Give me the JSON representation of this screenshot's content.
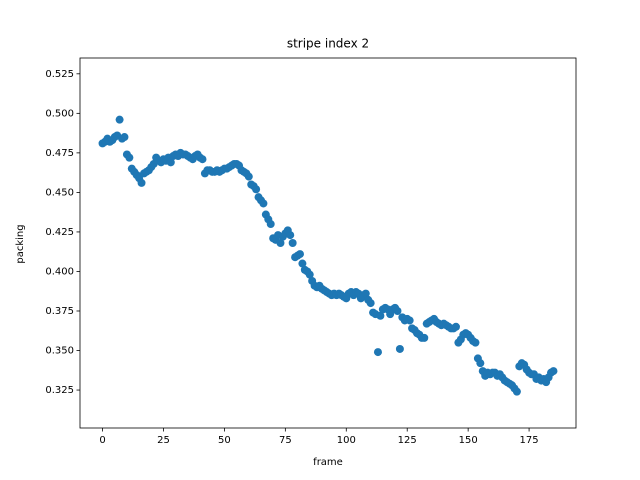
{
  "chart_data": {
    "type": "scatter",
    "title": "stripe index 2",
    "xlabel": "frame",
    "ylabel": "packing",
    "color": "#1f77b4",
    "grid": false,
    "xlim": [
      -9.25,
      194.25
    ],
    "xticks": [
      0,
      25,
      50,
      75,
      100,
      125,
      150,
      175
    ],
    "ylim": [
      0.301,
      0.535
    ],
    "yticks": [
      0.325,
      {
        "value": 0.35,
        "label": "0.350"
      },
      0.375,
      {
        "value": 0.4,
        "label": "0.400"
      },
      0.425,
      {
        "value": 0.45,
        "label": "0.450"
      },
      0.475,
      {
        "value": 0.5,
        "label": "0.500"
      },
      0.525
    ],
    "x": [
      0,
      1,
      2,
      3,
      4,
      5,
      6,
      7,
      8,
      9,
      10,
      11,
      12,
      13,
      14,
      15,
      16,
      17,
      18,
      19,
      20,
      21,
      22,
      23,
      24,
      25,
      26,
      27,
      28,
      29,
      30,
      31,
      32,
      33,
      34,
      35,
      36,
      37,
      38,
      39,
      40,
      41,
      42,
      43,
      44,
      45,
      46,
      47,
      48,
      49,
      50,
      51,
      52,
      53,
      54,
      55,
      56,
      57,
      58,
      59,
      60,
      61,
      62,
      63,
      64,
      65,
      66,
      67,
      68,
      69,
      70,
      71,
      72,
      73,
      74,
      75,
      76,
      77,
      78,
      79,
      80,
      81,
      82,
      83,
      84,
      85,
      86,
      87,
      88,
      89,
      90,
      91,
      92,
      93,
      94,
      95,
      96,
      97,
      98,
      99,
      100,
      101,
      102,
      103,
      104,
      105,
      106,
      107,
      108,
      109,
      110,
      111,
      112,
      113,
      114,
      115,
      116,
      117,
      118,
      119,
      120,
      121,
      122,
      123,
      124,
      125,
      126,
      127,
      128,
      129,
      130,
      131,
      132,
      133,
      134,
      135,
      136,
      137,
      138,
      139,
      140,
      141,
      142,
      143,
      144,
      145,
      146,
      147,
      148,
      149,
      150,
      151,
      152,
      153,
      154,
      155,
      156,
      157,
      158,
      159,
      160,
      161,
      162,
      163,
      164,
      165,
      166,
      167,
      168,
      169,
      170,
      171,
      172,
      173,
      174,
      175,
      176,
      177,
      178,
      179,
      180,
      181,
      182,
      183,
      184,
      185
    ],
    "values": [
      0.481,
      0.482,
      0.484,
      0.482,
      0.483,
      0.485,
      0.486,
      0.496,
      0.484,
      0.485,
      0.474,
      0.472,
      0.465,
      0.463,
      0.461,
      0.459,
      0.456,
      0.462,
      0.463,
      0.464,
      0.466,
      0.468,
      0.472,
      0.47,
      0.469,
      0.471,
      0.47,
      0.472,
      0.469,
      0.473,
      0.474,
      0.473,
      0.475,
      0.474,
      0.474,
      0.473,
      0.472,
      0.471,
      0.473,
      0.474,
      0.472,
      0.471,
      0.462,
      0.464,
      0.464,
      0.463,
      0.463,
      0.464,
      0.463,
      0.464,
      0.465,
      0.465,
      0.466,
      0.467,
      0.468,
      0.468,
      0.467,
      0.464,
      0.463,
      0.462,
      0.46,
      0.455,
      0.454,
      0.452,
      0.447,
      0.445,
      0.443,
      0.436,
      0.433,
      0.43,
      0.421,
      0.42,
      0.423,
      0.418,
      0.422,
      0.424,
      0.426,
      0.423,
      0.418,
      0.409,
      0.41,
      0.411,
      0.405,
      0.401,
      0.4,
      0.398,
      0.394,
      0.391,
      0.39,
      0.391,
      0.389,
      0.388,
      0.387,
      0.386,
      0.385,
      0.386,
      0.385,
      0.386,
      0.385,
      0.384,
      0.383,
      0.386,
      0.387,
      0.385,
      0.387,
      0.386,
      0.383,
      0.385,
      0.386,
      0.382,
      0.38,
      0.374,
      0.373,
      0.349,
      0.372,
      0.376,
      0.377,
      0.376,
      0.373,
      0.376,
      0.377,
      0.375,
      0.351,
      0.371,
      0.369,
      0.37,
      0.369,
      0.364,
      0.363,
      0.361,
      0.36,
      0.358,
      0.358,
      0.367,
      0.368,
      0.369,
      0.37,
      0.368,
      0.367,
      0.366,
      0.367,
      0.366,
      0.365,
      0.364,
      0.364,
      0.365,
      0.355,
      0.357,
      0.36,
      0.361,
      0.36,
      0.358,
      0.356,
      0.355,
      0.345,
      0.342,
      0.337,
      0.334,
      0.336,
      0.335,
      0.336,
      0.336,
      0.334,
      0.335,
      0.333,
      0.331,
      0.33,
      0.329,
      0.328,
      0.326,
      0.324,
      0.34,
      0.342,
      0.341,
      0.338,
      0.336,
      0.335,
      0.335,
      0.332,
      0.333,
      0.331,
      0.332,
      0.33,
      0.333,
      0.336,
      0.337
    ]
  }
}
